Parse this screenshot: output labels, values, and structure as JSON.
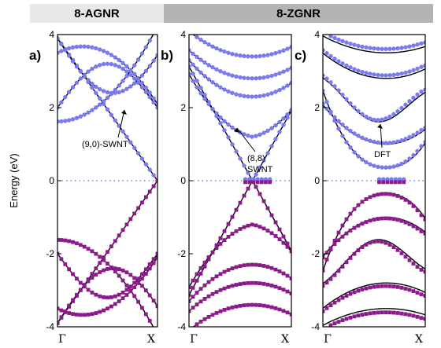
{
  "header": {
    "left": "8-AGNR",
    "right": "8-ZGNR"
  },
  "y_axis_label": "Energy (eV)",
  "colors": {
    "tb_lines": "#000000",
    "conduction_dots": "#7b7bf0",
    "valence_dots": "#8b1a8b",
    "fermi_line": "#3a3ad0"
  },
  "chart_data": [
    {
      "panel": "a)",
      "type": "line",
      "ylim": [
        -4,
        4
      ],
      "x_ticks": [
        "Γ",
        "X"
      ],
      "y_ticks": [
        -4,
        -2,
        0,
        2,
        4
      ],
      "annotation": "(9,0)-SWNT",
      "series": [
        {
          "name": "(9,0)-SWNT",
          "style": "black-lines"
        },
        {
          "name": "DFT",
          "style": "dots"
        }
      ],
      "band_edges": [
        0.0,
        1.62,
        2.0,
        3.5,
        4.0
      ]
    },
    {
      "panel": "b)",
      "type": "line",
      "ylim": [
        -4,
        4
      ],
      "x_ticks": [
        "Γ",
        "X"
      ],
      "y_ticks": [
        -4,
        -2,
        0,
        2,
        4
      ],
      "annotation": "(8,8) SWNT",
      "series": [
        {
          "name": "(8,8) SWNT",
          "style": "black-lines"
        },
        {
          "name": "DFT",
          "style": "dots"
        }
      ],
      "band_edges": [
        0.0,
        1.2,
        2.0,
        2.8,
        3.4
      ]
    },
    {
      "panel": "c)",
      "type": "line",
      "ylim": [
        -4,
        4
      ],
      "x_ticks": [
        "Γ",
        "X"
      ],
      "y_ticks": [
        -4,
        -2,
        0,
        2,
        4
      ],
      "annotation": "DFT",
      "series": [
        {
          "name": "DFT",
          "style": "dots"
        }
      ],
      "band_edges": [
        0.0,
        0.9,
        1.9,
        2.8,
        3.5
      ]
    }
  ]
}
